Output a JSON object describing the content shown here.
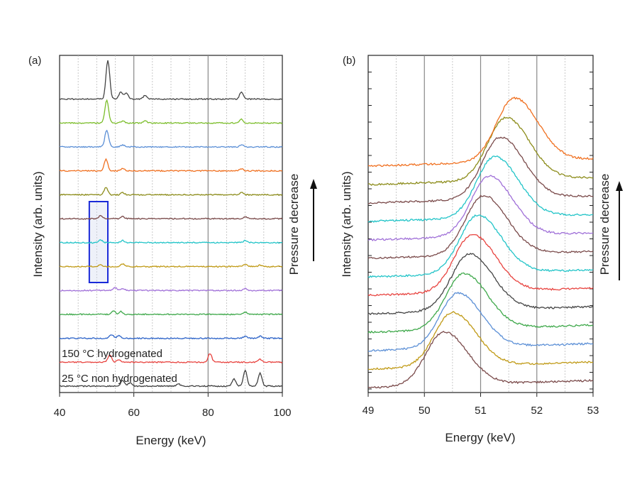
{
  "chart_data": [
    {
      "type": "line",
      "panel_label": "(a)",
      "xlabel": "Energy (keV)",
      "ylabel": "Intensity (arb. units)",
      "xlim": [
        40,
        100
      ],
      "x_ticks": [
        "40",
        "60",
        "80",
        "100"
      ],
      "grid": "vertical",
      "side_label": "Pressure decrease",
      "arrow_direction": "up",
      "annotations": [
        "150 °C hydrogenated",
        "25 °C non hydrogenated"
      ],
      "highlight_box_x_range": [
        48,
        53
      ],
      "series": [
        {
          "color": "#404040",
          "baseline": 0,
          "peaks": [
            [
              57,
              8
            ],
            [
              59,
              5
            ],
            [
              72,
              3
            ],
            [
              87,
              10
            ],
            [
              90,
              22
            ],
            [
              94,
              18
            ]
          ]
        },
        {
          "color": "#e8433f",
          "baseline": 1,
          "peaks": [
            [
              53.5,
              10
            ],
            [
              56,
              4
            ],
            [
              80.5,
              12
            ],
            [
              94,
              4
            ]
          ]
        },
        {
          "color": "#2b62c8",
          "baseline": 2,
          "peaks": [
            [
              54,
              5
            ],
            [
              56,
              4
            ],
            [
              90,
              3
            ],
            [
              94,
              3
            ]
          ]
        },
        {
          "color": "#3ea84a",
          "baseline": 3,
          "peaks": [
            [
              54.5,
              5
            ],
            [
              56.5,
              4
            ],
            [
              90,
              3
            ]
          ]
        },
        {
          "color": "#a070d8",
          "baseline": 4,
          "peaks": [
            [
              55,
              4
            ],
            [
              57,
              3
            ],
            [
              90,
              3
            ]
          ]
        },
        {
          "color": "#c09a16",
          "baseline": 5,
          "peaks": [
            [
              51,
              3
            ],
            [
              57,
              4
            ],
            [
              90,
              3
            ],
            [
              94,
              2
            ]
          ]
        },
        {
          "color": "#22c4c8",
          "baseline": 6,
          "peaks": [
            [
              51,
              4
            ],
            [
              57,
              3
            ],
            [
              90,
              3
            ]
          ]
        },
        {
          "color": "#7a4a4a",
          "baseline": 7,
          "peaks": [
            [
              51,
              4
            ],
            [
              57,
              3
            ],
            [
              90,
              3
            ]
          ]
        },
        {
          "color": "#8c8c1a",
          "baseline": 8,
          "peaks": [
            [
              52.5,
              10
            ],
            [
              57,
              3
            ],
            [
              89,
              3
            ]
          ]
        },
        {
          "color": "#f07020",
          "baseline": 9,
          "peaks": [
            [
              52.5,
              16
            ],
            [
              57,
              3
            ],
            [
              89,
              3
            ]
          ]
        },
        {
          "color": "#5b8fd6",
          "baseline": 10,
          "peaks": [
            [
              52.7,
              24
            ],
            [
              57,
              3
            ],
            [
              89,
              3
            ]
          ]
        },
        {
          "color": "#7bbd2a",
          "baseline": 11,
          "peaks": [
            [
              52.7,
              32
            ],
            [
              57,
              3
            ],
            [
              63,
              3
            ],
            [
              89,
              5
            ]
          ]
        },
        {
          "color": "#444444",
          "baseline": 12,
          "peaks": [
            [
              53,
              55
            ],
            [
              56.5,
              10
            ],
            [
              58,
              8
            ],
            [
              63,
              5
            ],
            [
              89,
              10
            ]
          ]
        }
      ]
    },
    {
      "type": "line",
      "panel_label": "(b)",
      "xlabel": "Energy (keV)",
      "ylabel": "Intensity (arb. units)",
      "xlim": [
        49,
        53
      ],
      "x_ticks": [
        "49",
        "50",
        "51",
        "52",
        "53"
      ],
      "grid": "vertical",
      "side_label": "Pressure decrease",
      "arrow_direction": "up",
      "series": [
        {
          "color": "#7a4a4a",
          "baseline": 0,
          "peak_center": 50.35
        },
        {
          "color": "#c09a16",
          "baseline": 1,
          "peak_center": 50.5
        },
        {
          "color": "#5b8fd6",
          "baseline": 2,
          "peak_center": 50.6
        },
        {
          "color": "#3ea84a",
          "baseline": 3,
          "peak_center": 50.7
        },
        {
          "color": "#444444",
          "baseline": 4,
          "peak_center": 50.8
        },
        {
          "color": "#e8433f",
          "baseline": 5,
          "peak_center": 50.85
        },
        {
          "color": "#22c4c8",
          "baseline": 6,
          "peak_center": 50.95
        },
        {
          "color": "#7a4a4a",
          "baseline": 7,
          "peak_center": 51.05
        },
        {
          "color": "#a070d8",
          "baseline": 8,
          "peak_center": 51.15
        },
        {
          "color": "#22c4c8",
          "baseline": 9,
          "peak_center": 51.25
        },
        {
          "color": "#7a4a4a",
          "baseline": 10,
          "peak_center": 51.35
        },
        {
          "color": "#8c8c1a",
          "baseline": 11,
          "peak_center": 51.45
        },
        {
          "color": "#f07020",
          "baseline": 12,
          "peak_center": 51.6
        }
      ]
    }
  ]
}
